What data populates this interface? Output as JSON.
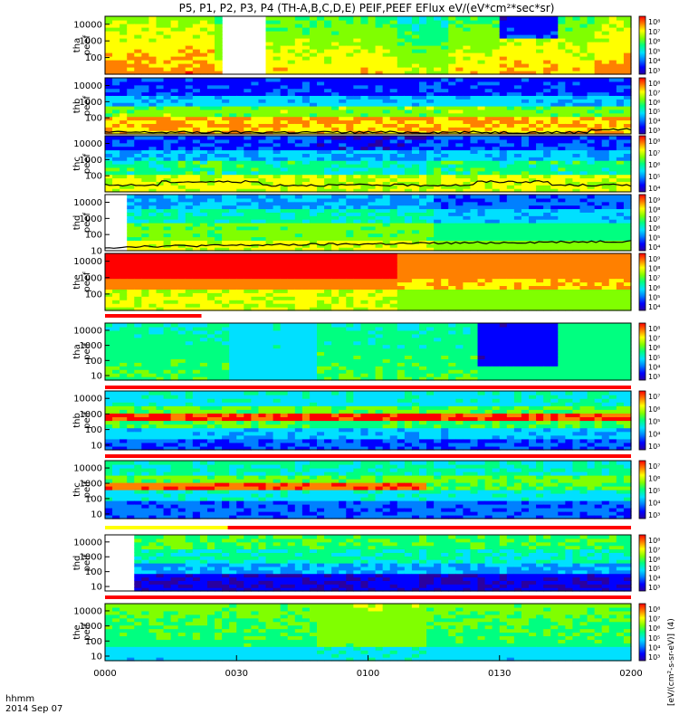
{
  "title": "P5, P1, P2, P3, P4 (TH-A,B,C,D,E) PEIF,PEEF EFlux eV/(eV*cm²*sec*sr)",
  "xaxis": {
    "ticks": [
      "0000",
      "0030",
      "0100",
      "0130",
      "0200"
    ],
    "label_line1": "hhmm",
    "label_line2": "2014 Sep 07"
  },
  "colorbar_label": "[eV/(cm²-s-sr-eV)]",
  "colorbar_label_unit": "(4)",
  "colors": {
    "scale": [
      "#2a00a0",
      "#0000ff",
      "#0080ff",
      "#00e0ff",
      "#00ff80",
      "#80ff00",
      "#ffff00",
      "#ff8000",
      "#ff0000"
    ],
    "status_red": "#ff0000",
    "status_yellow": "#ffff00"
  },
  "chart_data": {
    "type": "heatmap",
    "x_range": [
      "00:00",
      "02:00"
    ],
    "panels": [
      {
        "name": "tha peef",
        "ylabel": [
          "tha",
          "peef"
        ],
        "yticks": [
          "10000",
          "1000",
          "100"
        ],
        "cbar": [
          "10⁸",
          "10⁷",
          "10⁶",
          "10⁵",
          "10⁴",
          "10³"
        ],
        "ylog": [
          10,
          30000
        ]
      },
      {
        "name": "thb peef",
        "ylabel": [
          "thb",
          "peef"
        ],
        "yticks": [
          "10000",
          "1000",
          "100"
        ],
        "cbar": [
          "10⁸",
          "10⁷",
          "10⁶",
          "10⁵",
          "10⁴",
          "10³"
        ],
        "ylog": [
          10,
          30000
        ]
      },
      {
        "name": "thc peef",
        "ylabel": [
          "thc",
          "peef"
        ],
        "yticks": [
          "10000",
          "1000",
          "100"
        ],
        "cbar": [
          "10⁸",
          "10⁷",
          "10⁶",
          "10⁵",
          "10⁴"
        ],
        "ylog": [
          10,
          30000
        ]
      },
      {
        "name": "thd peef",
        "ylabel": [
          "thd",
          "peef"
        ],
        "yticks": [
          "10000",
          "1000",
          "100",
          "10"
        ],
        "cbar": [
          "10⁹",
          "10⁸",
          "10⁷",
          "10⁶",
          "10⁵",
          "10⁴"
        ],
        "ylog": [
          10,
          30000
        ]
      },
      {
        "name": "the peef",
        "ylabel": [
          "the",
          "peef"
        ],
        "yticks": [
          "10000",
          "1000",
          "100"
        ],
        "cbar": [
          "10⁹",
          "10⁸",
          "10⁷",
          "10⁶",
          "10⁵",
          "10⁴"
        ],
        "ylog": [
          10,
          30000
        ]
      },
      {
        "name": "tha peif",
        "ylabel": [
          "tha",
          "peif"
        ],
        "yticks": [
          "10000",
          "1000",
          "100",
          "10"
        ],
        "cbar": [
          "10⁸",
          "10⁷",
          "10⁶",
          "10⁵",
          "10⁴",
          "10³"
        ],
        "ylog": [
          5,
          30000
        ]
      },
      {
        "name": "thb peif",
        "ylabel": [
          "thb",
          "peif"
        ],
        "yticks": [
          "10000",
          "1000",
          "100",
          "10"
        ],
        "cbar": [
          "10⁷",
          "10⁶",
          "10⁵",
          "10⁴",
          "10³"
        ],
        "ylog": [
          5,
          30000
        ]
      },
      {
        "name": "thc peif",
        "ylabel": [
          "thc",
          "peif"
        ],
        "yticks": [
          "10000",
          "1000",
          "100",
          "10"
        ],
        "cbar": [
          "10⁷",
          "10⁶",
          "10⁵",
          "10⁴",
          "10³"
        ],
        "ylog": [
          5,
          30000
        ]
      },
      {
        "name": "thd peif",
        "ylabel": [
          "thd",
          "peif"
        ],
        "yticks": [
          "10000",
          "1000",
          "100",
          "10"
        ],
        "cbar": [
          "10⁸",
          "10⁷",
          "10⁶",
          "10⁵",
          "10⁴",
          "10³"
        ],
        "ylog": [
          5,
          30000
        ]
      },
      {
        "name": "the peif",
        "ylabel": [
          "the",
          "peif"
        ],
        "yticks": [
          "10000",
          "1000",
          "100",
          "10"
        ],
        "cbar": [
          "10⁸",
          "10⁷",
          "10⁶",
          "10⁵",
          "10⁴",
          "10³"
        ],
        "ylog": [
          5,
          30000
        ]
      }
    ],
    "status_bars": [
      {
        "after_panel": 4,
        "segments": [
          {
            "from": "00:00",
            "to": "00:22",
            "color": "red"
          }
        ]
      },
      {
        "after_panel": 5,
        "segments": [
          {
            "from": "00:00",
            "to": "02:00",
            "color": "red"
          }
        ]
      },
      {
        "after_panel": 6,
        "segments": [
          {
            "from": "00:00",
            "to": "02:00",
            "color": "red"
          }
        ]
      },
      {
        "after_panel": 7,
        "segments": [
          {
            "from": "00:00",
            "to": "00:28",
            "color": "yellow"
          },
          {
            "from": "00:28",
            "to": "02:00",
            "color": "red"
          }
        ]
      },
      {
        "after_panel": 8,
        "segments": [
          {
            "from": "00:00",
            "to": "02:00",
            "color": "red"
          }
        ]
      }
    ]
  }
}
